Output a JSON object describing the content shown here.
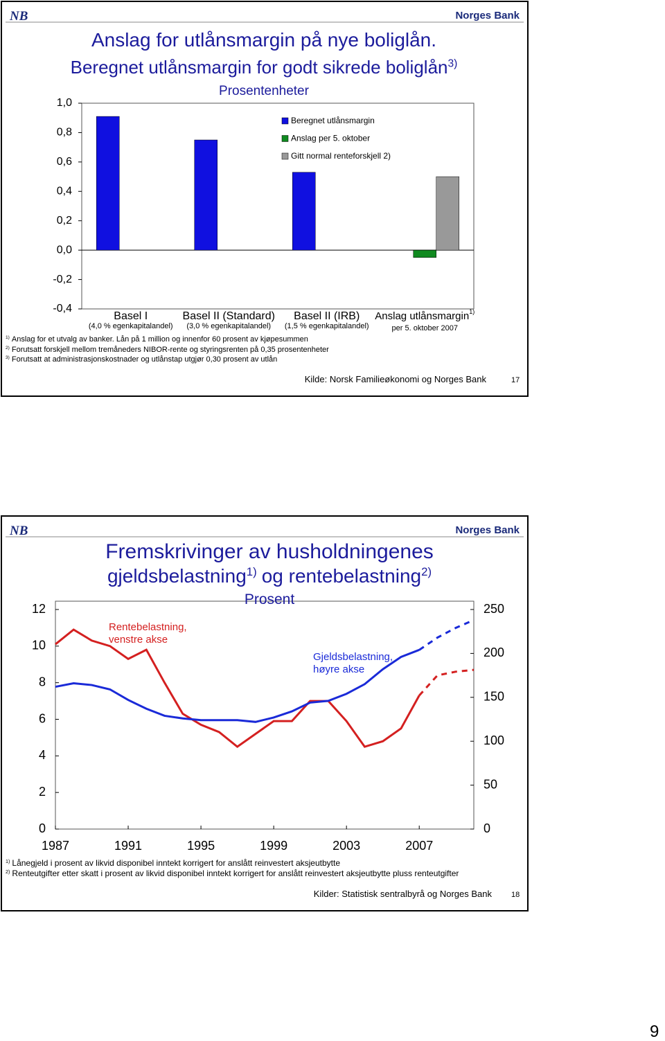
{
  "chart_data": [
    {
      "type": "bar",
      "logo": "NB",
      "brand": "Norges Bank",
      "title": [
        [
          "Anslag for utlånsmargin på nye boliglån."
        ],
        [
          "Beregnet utlånsmargin for godt sikrede boliglån",
          "3)"
        ]
      ],
      "subtitle": "Prosentenheter",
      "categories": [
        "Basel I",
        "Basel II (Standard)",
        "Basel II (IRB)",
        "Anslag utlånsmargin"
      ],
      "category_notes": [
        null,
        null,
        null,
        "1)"
      ],
      "category_subtitles": [
        "(4,0 % egenkapitalandel)",
        "(3,0 % egenkapitalandel)",
        "(1,5 % egenkapitalandel)",
        "per 5. oktober 2007"
      ],
      "series": [
        {
          "name": "Beregnet utlånsmargin",
          "color": "#1010e0",
          "values": [
            0.91,
            0.75,
            0.53,
            null
          ]
        },
        {
          "name": "Anslag per 5. oktober",
          "color": "#108a20",
          "values": [
            null,
            null,
            null,
            -0.05
          ]
        },
        {
          "name": "Gitt normal renteforskjell 2)",
          "color": "#999999",
          "values": [
            null,
            null,
            null,
            0.5
          ]
        }
      ],
      "ylim": [
        -0.4,
        1.0
      ],
      "yticks": [
        {
          "value": -0.4,
          "label": "-0,4"
        },
        {
          "value": -0.2,
          "label": "-0,2"
        },
        {
          "value": 0,
          "label": "0,0"
        },
        {
          "value": 0.2,
          "label": "0,2"
        },
        {
          "value": 0.4,
          "label": "0,4"
        },
        {
          "value": 0.6,
          "label": "0,6"
        },
        {
          "value": 0.8,
          "label": "0,8"
        },
        {
          "value": 1.0,
          "label": "1,0"
        }
      ],
      "footnotes": [
        {
          "marker": "1)",
          "text": "Anslag for et utvalg av banker. Lån på 1 million og innenfor 60 prosent av kjøpesummen"
        },
        {
          "marker": "2)",
          "text": "Forutsatt forskjell mellom tremåneders NIBOR-rente og styringsrenten på 0,35 prosentenheter"
        },
        {
          "marker": "3)",
          "text": "Forutsatt at administrasjonskostnader og utlånstap utgjør 0,30 prosent av utlån"
        }
      ],
      "source": "Kilde: Norsk Familieøkonomi og Norges Bank",
      "page_number": "17"
    },
    {
      "type": "line",
      "logo": "NB",
      "brand": "Norges Bank",
      "title": [
        [
          "Fremskrivinger av husholdningenes"
        ],
        [
          "gjeldsbelastning",
          "1)",
          "og rentebelastning",
          "2)"
        ]
      ],
      "subtitle": "Prosent",
      "x": [
        1987,
        1988,
        1989,
        1990,
        1991,
        1992,
        1993,
        1994,
        1995,
        1996,
        1997,
        1998,
        1999,
        2000,
        2001,
        2002,
        2003,
        2004,
        2005,
        2006,
        2007,
        2008,
        2009,
        2010
      ],
      "series": [
        {
          "name": "Rentebelastning, venstre akse",
          "color": "#d42020",
          "values": [
            10.1,
            10.9,
            10.3,
            10.0,
            9.3,
            9.8,
            8.0,
            6.3,
            5.7,
            5.3,
            4.5,
            5.2,
            5.9,
            5.9,
            7.0,
            7.0,
            5.9,
            4.5,
            4.8,
            5.5,
            7.3,
            null,
            null,
            null
          ]
        },
        {
          "name": "Gjeldsbelastning, høyre akse",
          "color": "#1a2ad8",
          "axis": "y2",
          "values": [
            162,
            166,
            164,
            159,
            147,
            137,
            129,
            126,
            124,
            124,
            124,
            122,
            127,
            134,
            144,
            146,
            154,
            165,
            182,
            196,
            204,
            null,
            null,
            null
          ]
        },
        {
          "color": "#d42020",
          "dashed": true,
          "values": [
            null,
            null,
            null,
            null,
            null,
            null,
            null,
            null,
            null,
            null,
            null,
            null,
            null,
            null,
            null,
            null,
            null,
            null,
            null,
            null,
            7.3,
            8.4,
            8.6,
            8.7
          ]
        },
        {
          "color": "#1a2ad8",
          "dashed": true,
          "axis": "y2",
          "values": [
            null,
            null,
            null,
            null,
            null,
            null,
            null,
            null,
            null,
            null,
            null,
            null,
            null,
            null,
            null,
            null,
            null,
            null,
            null,
            null,
            204,
            218,
            229,
            238
          ]
        }
      ],
      "xlim": [
        1987,
        2010
      ],
      "xticks": [
        1987,
        1991,
        1995,
        1999,
        2003,
        2007
      ],
      "ylim": [
        0,
        12
      ],
      "yticks": [
        0,
        2,
        4,
        6,
        8,
        10,
        12
      ],
      "y2lim": [
        0,
        250
      ],
      "y2ticks": [
        0,
        50,
        100,
        150,
        200,
        250
      ],
      "footnotes": [
        {
          "marker": "1)",
          "text": "Lånegjeld i prosent av likvid disponibel inntekt korrigert for anslått reinvestert aksjeutbytte"
        },
        {
          "marker": "2)",
          "text": "Renteutgifter etter skatt i prosent av likvid disponibel inntekt korrigert for anslått reinvestert aksjeutbytte pluss renteutgifter"
        }
      ],
      "source": "Kilder: Statistisk sentralbyrå og Norges Bank",
      "page_number": "18"
    }
  ],
  "page_number": "9"
}
